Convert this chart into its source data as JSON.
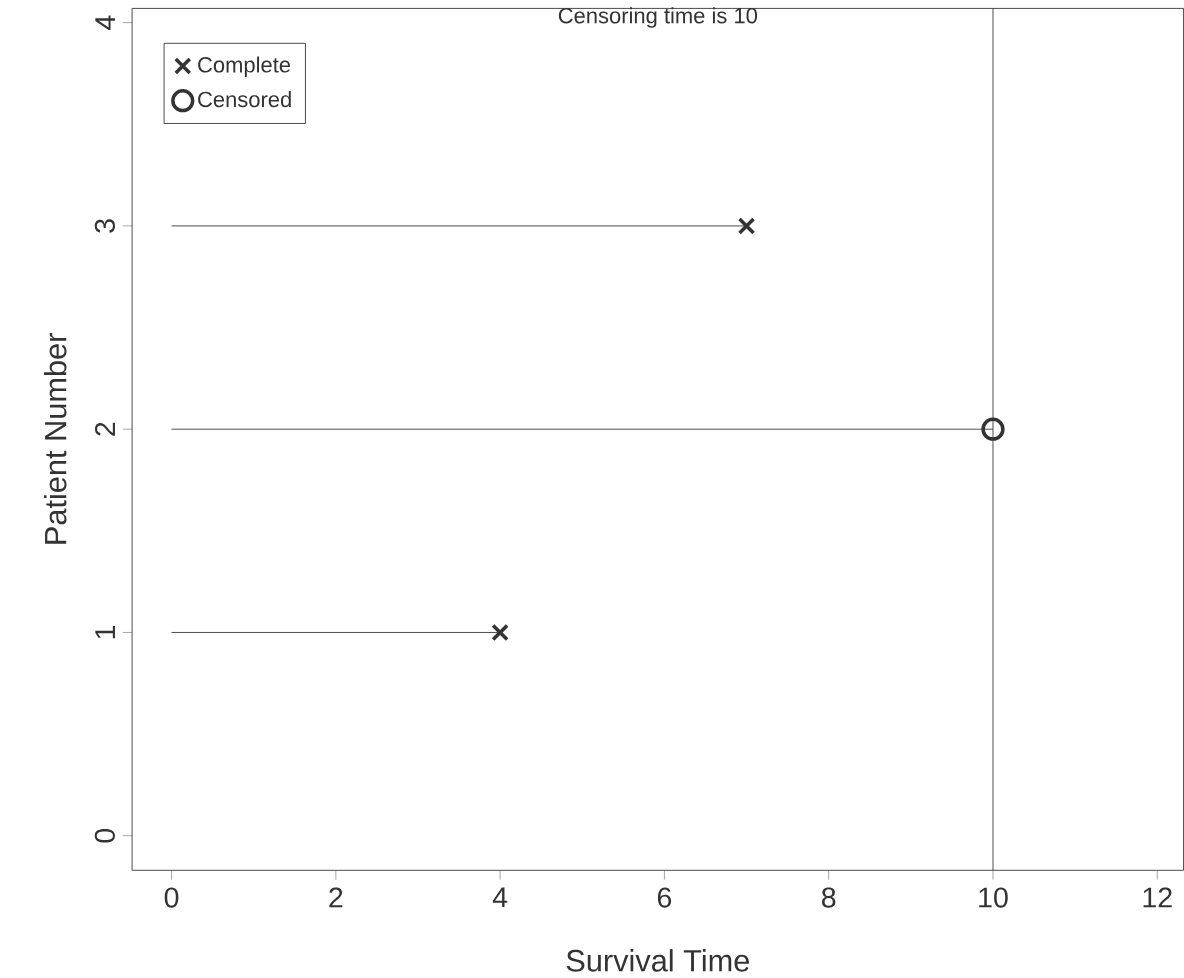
{
  "chart_data": {
    "type": "scatter",
    "title": "Censoring time is 10",
    "xlabel": "Survival Time",
    "ylabel": "Patient Number",
    "xlim": [
      -0.48,
      12.32
    ],
    "ylim": [
      -0.17,
      4.07
    ],
    "xticks": [
      0,
      2,
      4,
      6,
      8,
      10,
      12
    ],
    "yticks": [
      0,
      1,
      2,
      3,
      4
    ],
    "grid": false,
    "legend": "top left",
    "series": [
      {
        "type": "line",
        "color": "#333333",
        "marker": "none",
        "x": [
          0,
          7
        ],
        "values": [
          3,
          3
        ]
      },
      {
        "type": "line",
        "color": "#333333",
        "marker": "none",
        "x": [
          0,
          10
        ],
        "values": [
          2,
          2
        ]
      },
      {
        "type": "line",
        "color": "#333333",
        "marker": "none",
        "x": [
          0,
          4
        ],
        "values": [
          1,
          1
        ]
      },
      {
        "name": "Complete",
        "color": "#333333",
        "marker": "cross",
        "x": [
          7,
          4
        ],
        "values": [
          3,
          1
        ]
      },
      {
        "name": "Censored",
        "color": "#333333",
        "marker": "circle",
        "x": [
          10
        ],
        "values": [
          2
        ]
      }
    ],
    "ref_lines": [
      {
        "axis": "x",
        "value": 10,
        "color": "#333333"
      }
    ]
  }
}
